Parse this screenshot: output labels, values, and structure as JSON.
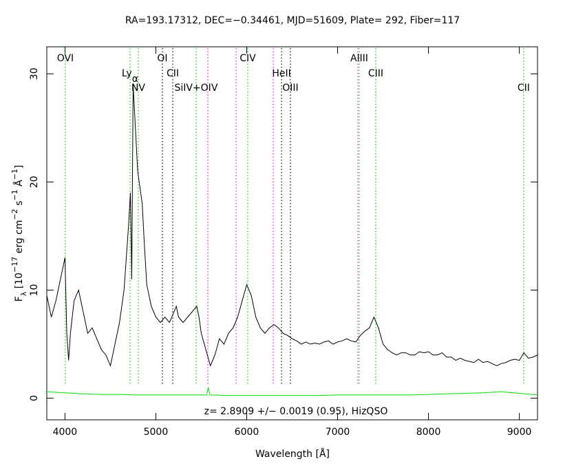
{
  "chart_data": {
    "type": "line",
    "title": "RA=193.17312, DEC=−0.34461, MJD=51609, Plate= 292, Fiber=117",
    "annotation": "z= 2.8909 +/− 0.0019 (0.95), HizQSO",
    "x_label": "Wavelength [Å]",
    "y_label": [
      {
        "text": "F"
      },
      {
        "text": "λ",
        "shift": "sub"
      },
      {
        "text": " [10"
      },
      {
        "text": "−17",
        "shift": "super"
      },
      {
        "text": " erg cm"
      },
      {
        "text": "−2",
        "shift": "super"
      },
      {
        "text": " s"
      },
      {
        "text": "−1",
        "shift": "super"
      },
      {
        "text": " Å"
      },
      {
        "text": "−1",
        "shift": "super"
      },
      {
        "text": "]"
      }
    ],
    "xlim": [
      3800,
      9200
    ],
    "ylim": [
      -2,
      32.5
    ],
    "xticks": [
      4000,
      5000,
      6000,
      7000,
      8000,
      9000
    ],
    "yticks": [
      0,
      10,
      20,
      30
    ],
    "series": [
      {
        "color": "#000000",
        "x": [
          3800,
          3850,
          3900,
          3950,
          4000,
          4020,
          4040,
          4060,
          4100,
          4150,
          4200,
          4250,
          4300,
          4350,
          4400,
          4450,
          4500,
          4550,
          4600,
          4650,
          4700,
          4720,
          4735,
          4750,
          4775,
          4800,
          4850,
          4875,
          4900,
          4925,
          4950,
          5000,
          5050,
          5100,
          5150,
          5200,
          5225,
          5250,
          5300,
          5350,
          5400,
          5450,
          5475,
          5500,
          5550,
          5600,
          5650,
          5700,
          5750,
          5800,
          5850,
          5900,
          5950,
          6000,
          6050,
          6100,
          6150,
          6200,
          6250,
          6300,
          6350,
          6400,
          6450,
          6500,
          6550,
          6600,
          6650,
          6700,
          6750,
          6800,
          6850,
          6900,
          6950,
          7000,
          7050,
          7100,
          7150,
          7200,
          7250,
          7300,
          7350,
          7400,
          7450,
          7500,
          7550,
          7600,
          7650,
          7700,
          7750,
          7800,
          7850,
          7900,
          7950,
          8000,
          8050,
          8100,
          8150,
          8200,
          8250,
          8300,
          8350,
          8400,
          8450,
          8500,
          8550,
          8600,
          8650,
          8700,
          8750,
          8800,
          8850,
          8900,
          8950,
          9000,
          9050,
          9100,
          9150,
          9200
        ],
        "values": [
          9.5,
          7.5,
          9,
          11,
          13,
          6,
          3.5,
          6,
          9,
          10,
          8,
          6,
          6.5,
          5.5,
          4.5,
          4,
          3,
          5,
          7,
          10,
          16,
          19,
          11,
          29,
          25,
          21,
          18,
          14,
          10.5,
          9.5,
          8.5,
          7.5,
          7,
          7.5,
          7,
          8,
          8.5,
          7.5,
          7,
          7.5,
          8,
          8.5,
          7.5,
          6,
          4.5,
          3,
          4,
          5.5,
          5,
          6,
          6.5,
          7.5,
          9,
          10.5,
          9.5,
          7.5,
          6.5,
          6,
          6.5,
          6.8,
          6.5,
          6,
          5.8,
          5.5,
          5.3,
          5,
          5.2,
          5,
          5.1,
          5,
          5.2,
          5.3,
          5,
          5.2,
          5.3,
          5.5,
          5.3,
          5.2,
          5.8,
          6.2,
          6.5,
          7.5,
          6.5,
          5,
          4.5,
          4.2,
          4,
          4.2,
          4.2,
          4,
          4,
          4.3,
          4.2,
          4.3,
          4,
          4,
          4.2,
          3.8,
          3.8,
          3.5,
          3.7,
          3.5,
          3.4,
          3.3,
          3.6,
          3.3,
          3.4,
          3.2,
          3,
          3.2,
          3.3,
          3.5,
          3.6,
          3.5,
          4.2,
          3.7,
          3.8,
          4
        ]
      },
      {
        "color": "#00e000",
        "x": [
          3800,
          4000,
          4200,
          4400,
          4600,
          4800,
          5000,
          5200,
          5400,
          5560,
          5577,
          5595,
          5800,
          6000,
          6200,
          6400,
          6600,
          6800,
          7000,
          7200,
          7400,
          7600,
          7800,
          8000,
          8200,
          8400,
          8600,
          8800,
          9000,
          9200
        ],
        "values": [
          0.6,
          0.5,
          0.4,
          0.35,
          0.35,
          0.3,
          0.3,
          0.3,
          0.3,
          0.3,
          1.0,
          0.3,
          0.25,
          0.25,
          0.25,
          0.25,
          0.25,
          0.25,
          0.3,
          0.3,
          0.3,
          0.3,
          0.3,
          0.35,
          0.4,
          0.45,
          0.5,
          0.6,
          0.45,
          0.3
        ]
      }
    ],
    "lines": [
      {
        "x": 4004,
        "color": "#00cc00",
        "label": "OVI",
        "row": 1
      },
      {
        "x": 4716,
        "color": "#00cc00",
        "label": "Ly",
        "label_sub": "α",
        "row": 2
      },
      {
        "x": 4807,
        "color": "#00cc00",
        "label": "NV",
        "row": 3
      },
      {
        "x": 5072,
        "color": "#000000",
        "label": "OI",
        "row": 1
      },
      {
        "x": 5186,
        "color": "#000000",
        "label": "CII",
        "row": 2
      },
      {
        "x": 5443,
        "color": "#00cc00",
        "label": "SiIV+OIV",
        "row": 3
      },
      {
        "x": 5572,
        "color": "#ff00ff"
      },
      {
        "x": 5883,
        "color": "#ff00ff"
      },
      {
        "x": 6011,
        "color": "#00cc00",
        "label": "CIV",
        "row": 1
      },
      {
        "x": 6292,
        "color": "#ff00ff"
      },
      {
        "x": 6383,
        "color": "#000000",
        "label": "HeII",
        "row": 2
      },
      {
        "x": 6481,
        "color": "#000000",
        "label": "OIII",
        "row": 3
      },
      {
        "x": 7223,
        "color": "#ff00ff"
      },
      {
        "x": 7238,
        "color": "#00cc00",
        "label": "AlIII",
        "row": 1
      },
      {
        "x": 7420,
        "color": "#00cc00",
        "label": "CIII",
        "row": 2
      },
      {
        "x": 9048,
        "color": "#00cc00",
        "label": "CII",
        "row": 3
      }
    ]
  }
}
